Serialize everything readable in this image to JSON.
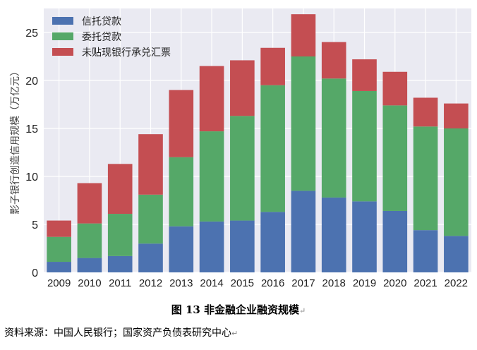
{
  "figure": {
    "caption": "图 13 非金融企业融资规模",
    "source": "资料来源：中国人民银行；国家资产负债表研究中心"
  },
  "chart_data": {
    "type": "bar",
    "stacked": true,
    "categories": [
      "2009",
      "2010",
      "2011",
      "2012",
      "2013",
      "2014",
      "2015",
      "2016",
      "2017",
      "2018",
      "2019",
      "2020",
      "2021",
      "2022"
    ],
    "series": [
      {
        "name": "信托贷款",
        "color": "#4C72B0",
        "values": [
          1.1,
          1.5,
          1.7,
          3.0,
          4.8,
          5.3,
          5.4,
          6.3,
          8.5,
          7.8,
          7.4,
          6.4,
          4.4,
          3.8
        ]
      },
      {
        "name": "委托贷款",
        "color": "#55A868",
        "values": [
          2.6,
          3.6,
          4.4,
          5.1,
          7.2,
          9.4,
          10.9,
          13.2,
          14.0,
          12.4,
          11.5,
          11.0,
          10.8,
          11.2
        ]
      },
      {
        "name": "未贴现银行承兑汇票",
        "color": "#C44E52",
        "values": [
          1.7,
          4.2,
          5.2,
          6.3,
          7.0,
          6.8,
          5.8,
          3.9,
          4.4,
          3.8,
          3.3,
          3.5,
          3.0,
          2.6
        ]
      }
    ],
    "ylabel": "影子银行创造信用规模（万亿元）",
    "xlabel": "",
    "ylim": [
      0,
      27.5
    ],
    "yticks": [
      0,
      5,
      10,
      15,
      20,
      25
    ],
    "grid": true,
    "legend_position": "top-left"
  }
}
